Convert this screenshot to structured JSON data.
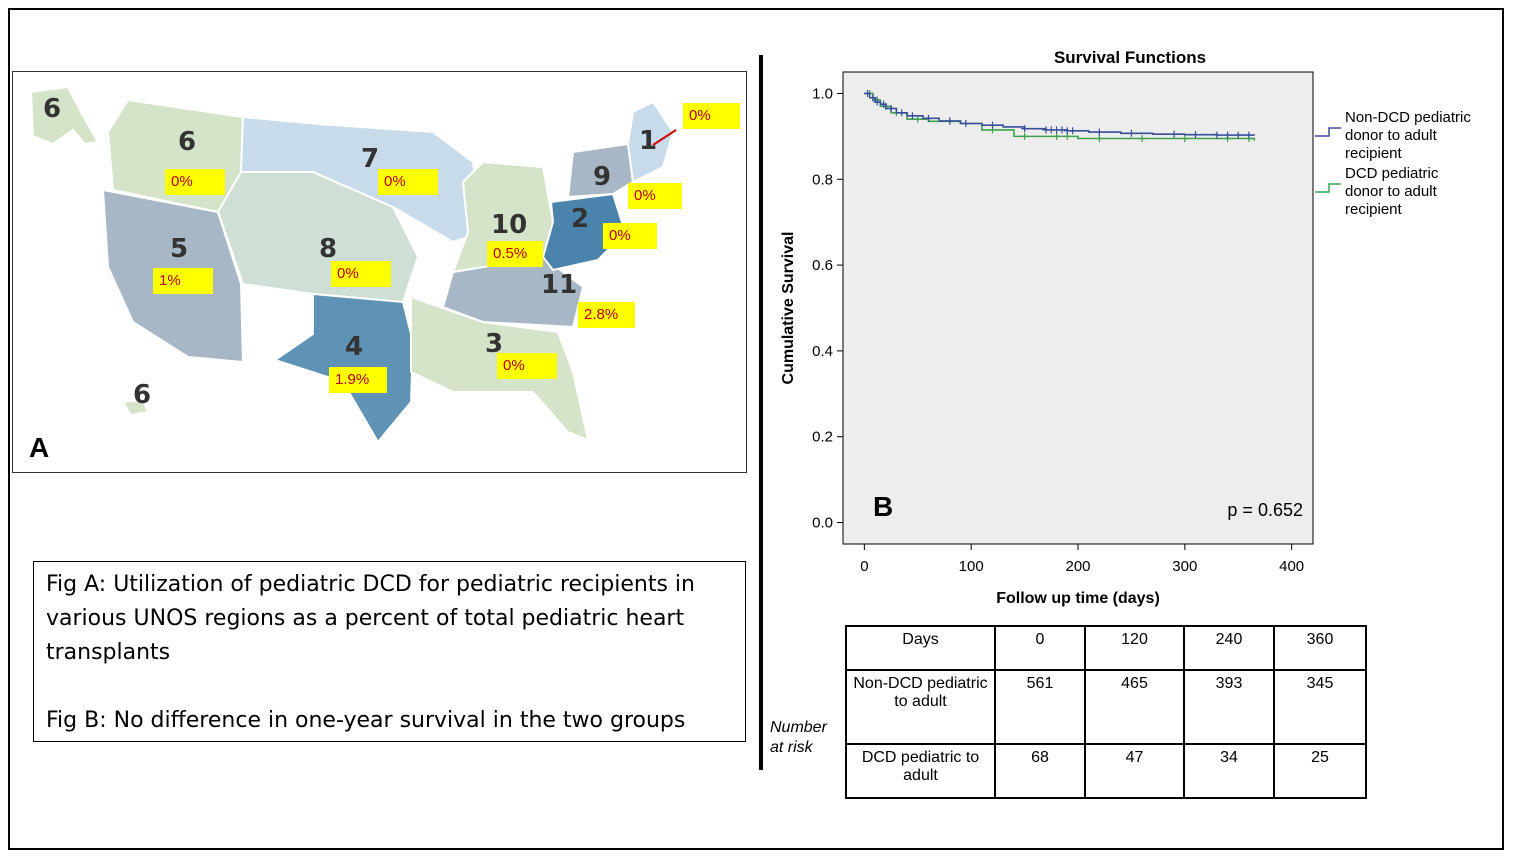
{
  "panel_a": {
    "letter": "A",
    "regions": [
      {
        "number": "6",
        "pct": "0%"
      },
      {
        "number": "7",
        "pct": "0%"
      },
      {
        "number": "1",
        "pct": "0%"
      },
      {
        "number": "9",
        "pct": "0%"
      },
      {
        "number": "10",
        "pct": "0.5%"
      },
      {
        "number": "2",
        "pct": "0%"
      },
      {
        "number": "5",
        "pct": "1%"
      },
      {
        "number": "8",
        "pct": "0%"
      },
      {
        "number": "11",
        "pct": "2.8%"
      },
      {
        "number": "3",
        "pct": "0%"
      },
      {
        "number": "4",
        "pct": "1.9%"
      }
    ],
    "alaska_number": "6",
    "hawaii_number": "6",
    "colors": {
      "light": "#d5e4c8",
      "lightblue": "#c8dbea",
      "mid": "#a8b7c5",
      "dark": "#5f93b5",
      "darkest": "#4a84ad"
    }
  },
  "caption": {
    "fig_a": "Fig A: Utilization of pediatric DCD for pediatric recipients in various UNOS regions as a percent of total pediatric heart transplants",
    "fig_b": "Fig B: No difference in one-year survival in the two groups"
  },
  "chart_data": {
    "type": "line",
    "title": "Survival Functions",
    "xlabel": "Follow up time (days)",
    "ylabel": "Cumulative Survival",
    "xlim": [
      -20,
      420
    ],
    "ylim": [
      -0.05,
      1.05
    ],
    "xticks": [
      0,
      100,
      200,
      300,
      400
    ],
    "yticks": [
      0.0,
      0.2,
      0.4,
      0.6,
      0.8,
      1.0
    ],
    "ytick_labels": [
      "0.0",
      "0.2",
      "0.4",
      "0.6",
      "0.8",
      "1.0"
    ],
    "panel_letter": "B",
    "annotation": "p = 0.652",
    "series": [
      {
        "name": "Non-DCD pediatric donor to adult recipient",
        "legend_lines": [
          "Non-DCD pediatric",
          "donor to adult",
          "recipient"
        ],
        "color": "#3a4f9c",
        "x": [
          0,
          5,
          10,
          15,
          20,
          30,
          40,
          55,
          70,
          90,
          110,
          130,
          150,
          170,
          190,
          210,
          240,
          270,
          300,
          330,
          365
        ],
        "y": [
          1.0,
          0.99,
          0.98,
          0.975,
          0.965,
          0.955,
          0.948,
          0.942,
          0.936,
          0.93,
          0.926,
          0.922,
          0.918,
          0.915,
          0.913,
          0.91,
          0.907,
          0.905,
          0.904,
          0.903,
          0.902
        ],
        "censor_x": [
          3,
          8,
          12,
          18,
          25,
          35,
          45,
          60,
          80,
          95,
          120,
          150,
          170,
          175,
          180,
          185,
          190,
          195,
          220,
          250,
          290,
          310,
          330,
          340,
          350,
          360
        ]
      },
      {
        "name": "DCD pediatric donor to adult recipient",
        "legend_lines": [
          "DCD pediatric",
          "donor to adult",
          "recipient"
        ],
        "color": "#3fa34d",
        "x": [
          0,
          8,
          15,
          25,
          40,
          60,
          90,
          110,
          140,
          200,
          260,
          320,
          365
        ],
        "y": [
          1.0,
          0.985,
          0.97,
          0.955,
          0.94,
          0.935,
          0.93,
          0.915,
          0.9,
          0.895,
          0.895,
          0.895,
          0.89
        ],
        "censor_x": [
          5,
          12,
          20,
          30,
          50,
          80,
          120,
          150,
          180,
          190,
          220,
          260,
          300,
          340,
          360
        ]
      }
    ]
  },
  "risk_table": {
    "side_label": [
      "Number",
      "at risk"
    ],
    "header": [
      "Days",
      "0",
      "120",
      "240",
      "360"
    ],
    "rows": [
      {
        "label": "Non-DCD pediatric to adult",
        "values": [
          "561",
          "465",
          "393",
          "345"
        ]
      },
      {
        "label": "DCD pediatric to adult",
        "values": [
          "68",
          "47",
          "34",
          "25"
        ]
      }
    ]
  }
}
